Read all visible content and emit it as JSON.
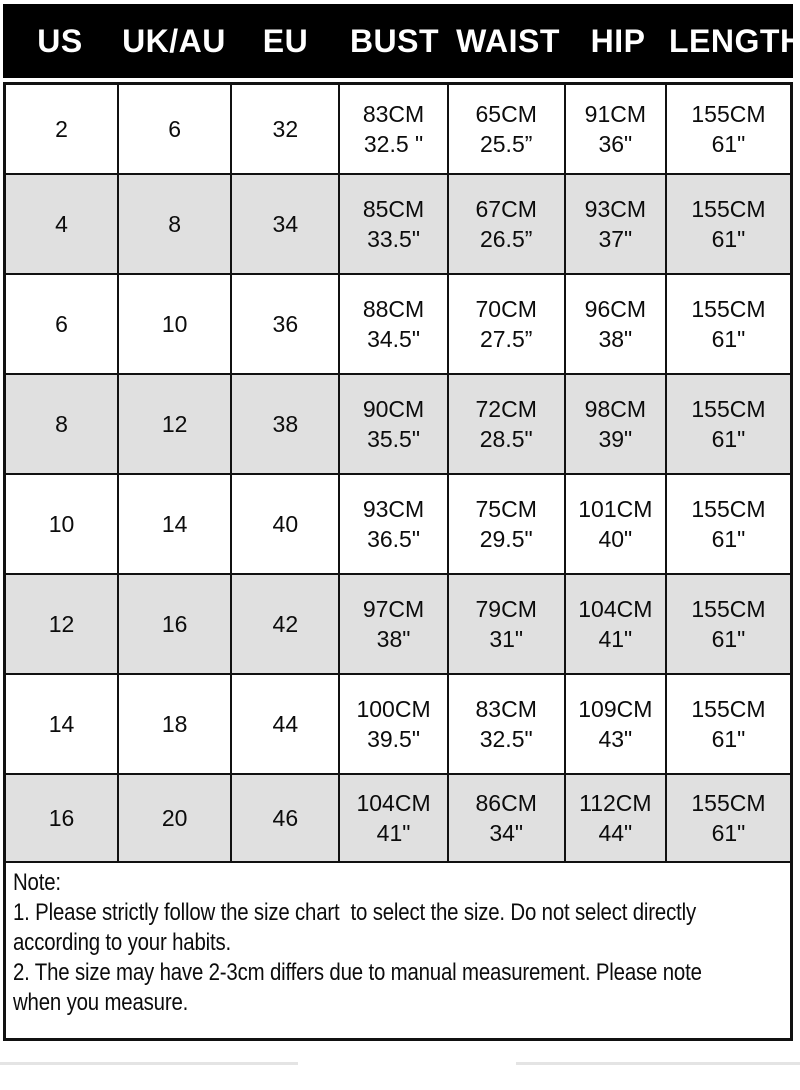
{
  "header": {
    "columns": [
      "US",
      "UK/AU",
      "EU",
      "BUST",
      "WAIST",
      "HIP",
      "LENGTH"
    ]
  },
  "table": {
    "rows": [
      [
        [
          "2"
        ],
        [
          "6"
        ],
        [
          "32"
        ],
        [
          "83CM",
          "32.5 \""
        ],
        [
          "65CM",
          "25.5”"
        ],
        [
          "91CM",
          "36\""
        ],
        [
          "155CM",
          "61\""
        ]
      ],
      [
        [
          "4"
        ],
        [
          "8"
        ],
        [
          "34"
        ],
        [
          "85CM",
          "33.5\""
        ],
        [
          "67CM",
          "26.5”"
        ],
        [
          "93CM",
          "37\""
        ],
        [
          "155CM",
          "61\""
        ]
      ],
      [
        [
          "6"
        ],
        [
          "10"
        ],
        [
          "36"
        ],
        [
          "88CM",
          "34.5\""
        ],
        [
          "70CM",
          "27.5”"
        ],
        [
          "96CM",
          "38\""
        ],
        [
          "155CM",
          "61\""
        ]
      ],
      [
        [
          "8"
        ],
        [
          "12"
        ],
        [
          "38"
        ],
        [
          "90CM",
          "35.5\""
        ],
        [
          "72CM",
          "28.5\""
        ],
        [
          "98CM",
          "39\""
        ],
        [
          "155CM",
          "61\""
        ]
      ],
      [
        [
          "10"
        ],
        [
          "14"
        ],
        [
          "40"
        ],
        [
          "93CM",
          "36.5\""
        ],
        [
          "75CM",
          "29.5\""
        ],
        [
          "101CM",
          "40\""
        ],
        [
          "155CM",
          "61\""
        ]
      ],
      [
        [
          "12"
        ],
        [
          "16"
        ],
        [
          "42"
        ],
        [
          "97CM",
          "38\""
        ],
        [
          "79CM",
          "31\""
        ],
        [
          "104CM",
          "41\""
        ],
        [
          "155CM",
          "61\""
        ]
      ],
      [
        [
          "14"
        ],
        [
          "18"
        ],
        [
          "44"
        ],
        [
          "100CM",
          "39.5\""
        ],
        [
          "83CM",
          "32.5\""
        ],
        [
          "109CM",
          "43\""
        ],
        [
          "155CM",
          "61\""
        ]
      ],
      [
        [
          "16"
        ],
        [
          "20"
        ],
        [
          "46"
        ],
        [
          "104CM",
          "41\""
        ],
        [
          "86CM",
          "34\""
        ],
        [
          "112CM",
          "44\""
        ],
        [
          "155CM",
          "61\""
        ]
      ]
    ]
  },
  "note": {
    "lines": [
      "Note:",
      "1. Please strictly follow the size chart  to select the size. Do not select directly",
      "according to your habits.",
      "2. The size may have 2-3cm differs due to manual measurement. Please note",
      "when you measure."
    ]
  },
  "colors": {
    "header_bg": "#000000",
    "header_text": "#ffffff",
    "row_alt_bg": "#e0e0e0",
    "border": "#111111",
    "divider": "#e4e4e4"
  }
}
